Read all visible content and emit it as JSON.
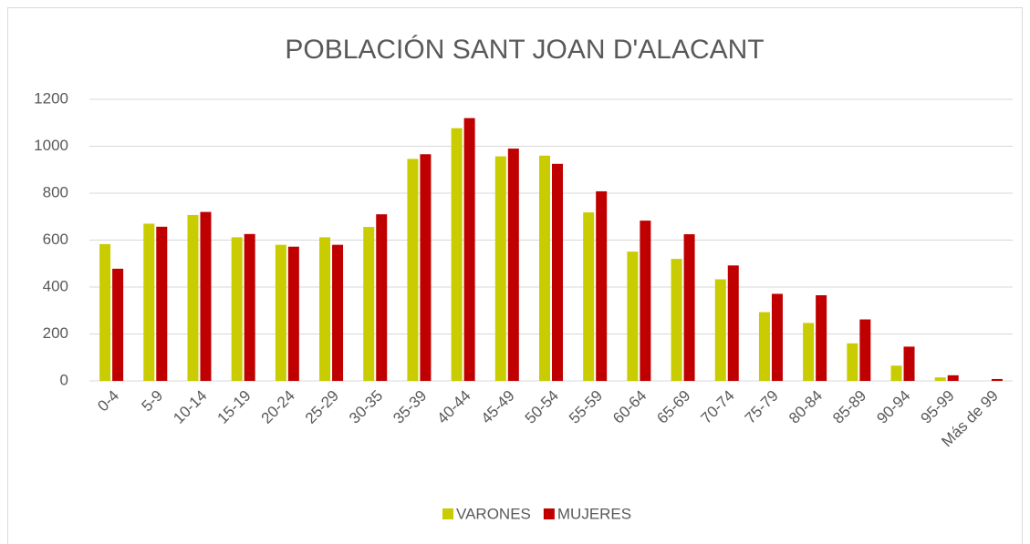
{
  "chart_data": {
    "type": "bar",
    "title": "POBLACIÓN SANT JOAN D'ALACANT",
    "categories": [
      "0-4",
      "5-9",
      "10-14",
      "15-19",
      "20-24",
      "25-29",
      "30-35",
      "35-39",
      "40-44",
      "45-49",
      "50-54",
      "55-59",
      "60-64",
      "65-69",
      "70-74",
      "75-79",
      "80-84",
      "85-89",
      "90-94",
      "95-99",
      "Más de 99"
    ],
    "series": [
      {
        "name": "VARONES",
        "color": "#c9cc00",
        "values": [
          583,
          670,
          707,
          612,
          580,
          612,
          656,
          946,
          1077,
          957,
          960,
          718,
          551,
          520,
          433,
          293,
          247,
          160,
          65,
          15,
          0
        ]
      },
      {
        "name": "MUJERES",
        "color": "#c00000",
        "values": [
          478,
          657,
          720,
          626,
          572,
          580,
          710,
          966,
          1120,
          990,
          925,
          808,
          683,
          625,
          492,
          371,
          365,
          262,
          146,
          24,
          8
        ]
      }
    ],
    "ylim": [
      0,
      1200
    ],
    "yticks": [
      0,
      200,
      400,
      600,
      800,
      1000,
      1200
    ],
    "grid": true,
    "legend": "bottom"
  }
}
